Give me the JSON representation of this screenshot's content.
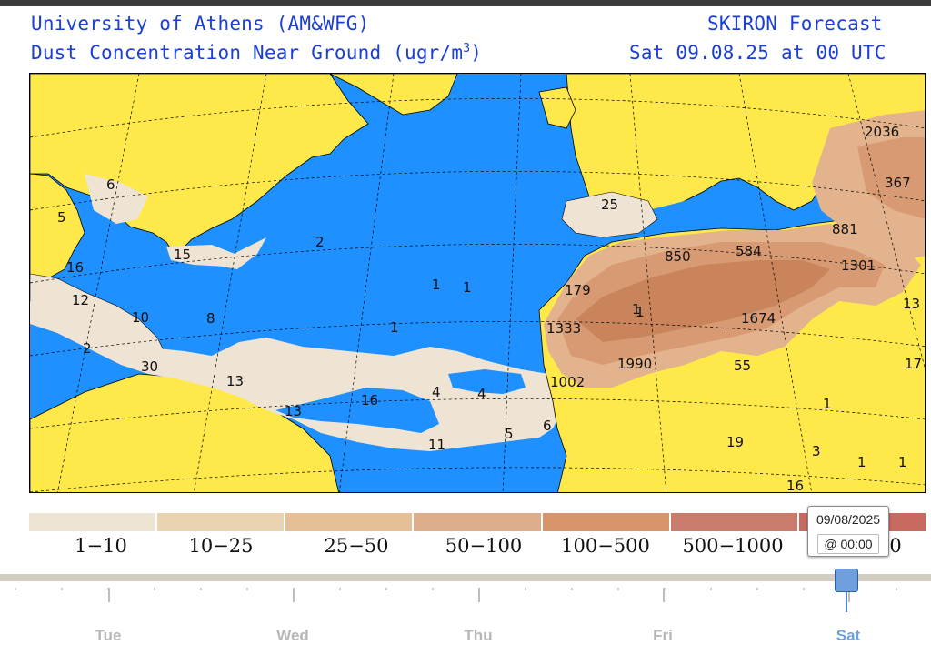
{
  "header": {
    "institution": "University of Athens (AM&WFG)",
    "variable": "Dust Concentration Near Ground (ugr/m",
    "unit_exponent": "3",
    "unit_close": ")",
    "model": "SKIRON Forecast",
    "valid_time": "Sat 09.08.25 at 00 UTC"
  },
  "map": {
    "colors": {
      "sea": "#1e90ff",
      "land_clear": "#ffe84a",
      "dust_1_10": "#efe4d3",
      "dust_10_25": "#ecd3b3",
      "dust_25_50": "#e2b38c",
      "dust_50_100": "#d79a73",
      "dust_100_500": "#c9845c",
      "dust_500_1000": "#b86a4a"
    },
    "value_labels": [
      "6",
      "5",
      "15",
      "16",
      "12",
      "10",
      "8",
      "2",
      "2",
      "30",
      "13",
      "13",
      "16",
      "11",
      "4",
      "4",
      "5",
      "6",
      "1",
      "1",
      "1",
      "1",
      "179",
      "1333",
      "1",
      "1002",
      "1990",
      "850",
      "584",
      "1674",
      "55",
      "25",
      "2036",
      "367",
      "881",
      "1301",
      "13",
      "17",
      "1",
      "3",
      "1",
      "1",
      "19",
      "16"
    ]
  },
  "legend": {
    "colors": [
      "#eee4d4",
      "#ead3b0",
      "#e5bf96",
      "#dcae8c",
      "#d7946d",
      "#c97c6c",
      "#c96a62"
    ],
    "labels": [
      "1−10",
      "10−25",
      "25−50",
      "50−100",
      "100−500",
      "500−1000",
      "0"
    ]
  },
  "tooltip": {
    "date": "09/08/2025",
    "time": "@ 00:00"
  },
  "timeline": {
    "days": [
      "Tue",
      "Wed",
      "Thu",
      "Fri",
      "Sat"
    ],
    "active_day": "Sat",
    "active_color": "#6fa0d8"
  }
}
